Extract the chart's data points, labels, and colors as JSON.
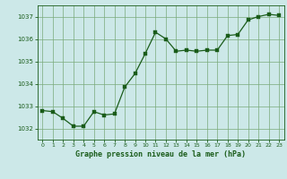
{
  "x": [
    0,
    1,
    2,
    3,
    4,
    5,
    6,
    7,
    8,
    9,
    10,
    11,
    12,
    13,
    14,
    15,
    16,
    17,
    18,
    19,
    20,
    21,
    22,
    23
  ],
  "y": [
    1032.8,
    1032.75,
    1032.45,
    1032.1,
    1032.1,
    1032.75,
    1032.6,
    1032.65,
    1033.85,
    1034.45,
    1035.35,
    1036.3,
    1036.0,
    1035.45,
    1035.5,
    1035.45,
    1035.5,
    1035.5,
    1036.15,
    1036.2,
    1036.85,
    1037.0,
    1037.1,
    1037.05
  ],
  "line_color": "#1a5c1a",
  "marker_color": "#1a5c1a",
  "bg_color": "#cce8e8",
  "grid_color": "#7aaa7a",
  "axis_color": "#1a5c1a",
  "title": "Graphe pression niveau de la mer (hPa)",
  "title_color": "#1a5c1a",
  "ylim": [
    1031.5,
    1037.5
  ],
  "yticks": [
    1032,
    1033,
    1034,
    1035,
    1036,
    1037
  ],
  "xticks": [
    0,
    1,
    2,
    3,
    4,
    5,
    6,
    7,
    8,
    9,
    10,
    11,
    12,
    13,
    14,
    15,
    16,
    17,
    18,
    19,
    20,
    21,
    22,
    23
  ],
  "xlim": [
    -0.5,
    23.5
  ]
}
